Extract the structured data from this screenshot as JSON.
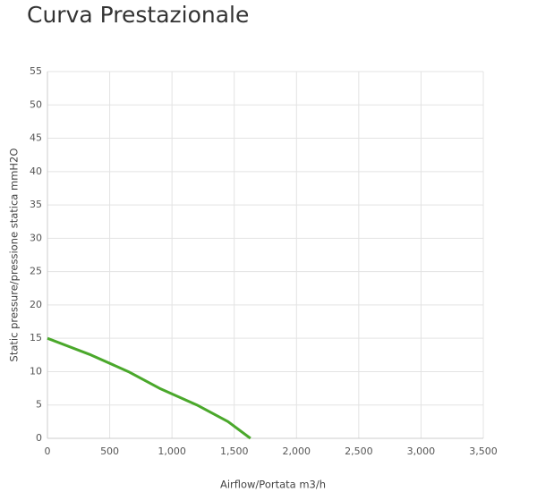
{
  "chart_data": {
    "type": "line",
    "title": "Curva Prestazionale",
    "x_label": "Airflow/Portata m3/h",
    "y_label": "Static pressure/pressione statica mmH2O",
    "x": [
      0,
      350,
      650,
      900,
      1200,
      1450,
      1630
    ],
    "values": [
      15,
      12.5,
      10,
      7.5,
      5,
      2.5,
      0
    ],
    "color": "#4aa82b",
    "xlim": [
      0,
      3500
    ],
    "xticks": [
      0,
      500,
      {
        "value": 1000,
        "label": "1,000"
      },
      {
        "value": 1500,
        "label": "1,500"
      },
      {
        "value": 2000,
        "label": "2,000"
      },
      {
        "value": 2500,
        "label": "2,500"
      },
      {
        "value": 3000,
        "label": "3,000"
      },
      {
        "value": 3500,
        "label": "3,500"
      }
    ],
    "ylim": [
      0,
      55
    ],
    "yticks": [
      0,
      5,
      10,
      15,
      20,
      25,
      30,
      35,
      40,
      45,
      50,
      55
    ],
    "grid": true
  }
}
